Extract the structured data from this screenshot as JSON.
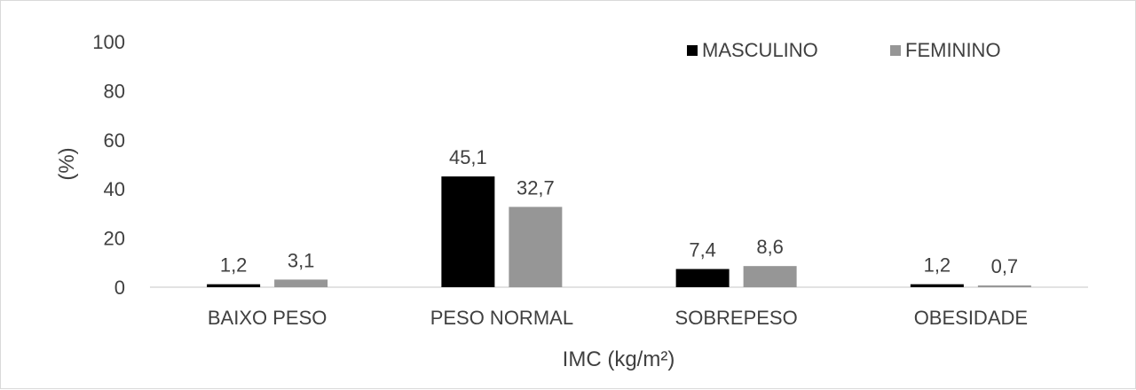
{
  "chart_data": {
    "type": "bar",
    "categories": [
      "BAIXO PESO",
      "PESO NORMAL",
      "SOBREPESO",
      "OBESIDADE"
    ],
    "series": [
      {
        "name": "MASCULINO",
        "values": [
          1.2,
          45.1,
          7.4,
          1.2
        ],
        "labels": [
          "1,2",
          "45,1",
          "7,4",
          "1,2"
        ],
        "color": "#000000"
      },
      {
        "name": "FEMININO",
        "values": [
          3.1,
          32.7,
          8.6,
          0.7
        ],
        "labels": [
          "3,1",
          "32,7",
          "8,6",
          "0,7"
        ],
        "color": "#969696"
      }
    ],
    "xlabel": "IMC (kg/m²)",
    "ylabel": "(%)",
    "ylim": [
      0,
      100
    ],
    "yticks": [
      "0",
      "20",
      "40",
      "60",
      "80",
      "100"
    ],
    "grid": false,
    "legend": "top-right"
  }
}
